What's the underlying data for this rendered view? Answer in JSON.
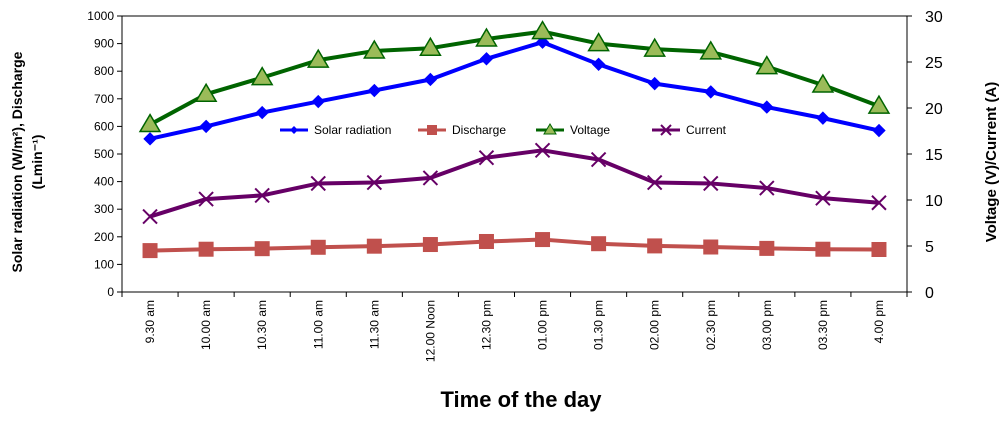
{
  "chart_data": {
    "type": "line",
    "categories": [
      "9.30 am",
      "10.00 am",
      "10.30 am",
      "11.00 am",
      "11.30 am",
      "12.00 Noon",
      "12.30 pm",
      "01.00 pm",
      "01.30 pm",
      "02.00 pm",
      "02.30 pm",
      "03.00 pm",
      "03.30 pm",
      "4.00 pm"
    ],
    "xlabel": "Time of the day",
    "ylabel_left_line1": "Solar radiation (W/m²), Discharge",
    "ylabel_left_line2": "(Lmin⁻¹)",
    "ylabel_right": "Voltage (V)/Current (A)",
    "y_left": {
      "min": 0,
      "max": 1000,
      "step": 100
    },
    "y_right": {
      "min": 0,
      "max": 30,
      "step": 5
    },
    "legend_position": "middle",
    "grid": false,
    "series": [
      {
        "name": "Solar radiation",
        "axis": "left",
        "color": "#0000FF",
        "marker": "diamond",
        "values": [
          555,
          600,
          650,
          690,
          730,
          770,
          845,
          905,
          825,
          755,
          725,
          670,
          630,
          585
        ]
      },
      {
        "name": "Discharge",
        "axis": "left",
        "color": "#C0504D",
        "marker": "square",
        "values": [
          150,
          155,
          157,
          162,
          166,
          172,
          183,
          190,
          175,
          167,
          163,
          158,
          155,
          154
        ]
      },
      {
        "name": "Voltage",
        "axis": "right",
        "color": "#006400",
        "marker_fill": "#9BBB59",
        "marker": "triangle",
        "values": [
          18.2,
          21.5,
          23.3,
          25.2,
          26.2,
          26.5,
          27.5,
          28.3,
          27.0,
          26.4,
          26.1,
          24.5,
          22.5,
          20.2
        ]
      },
      {
        "name": "Current",
        "axis": "right",
        "color": "#660066",
        "marker": "x",
        "values": [
          8.2,
          10.1,
          10.5,
          11.8,
          11.9,
          12.4,
          14.6,
          15.4,
          14.4,
          11.9,
          11.8,
          11.3,
          10.2,
          9.7
        ]
      }
    ]
  }
}
